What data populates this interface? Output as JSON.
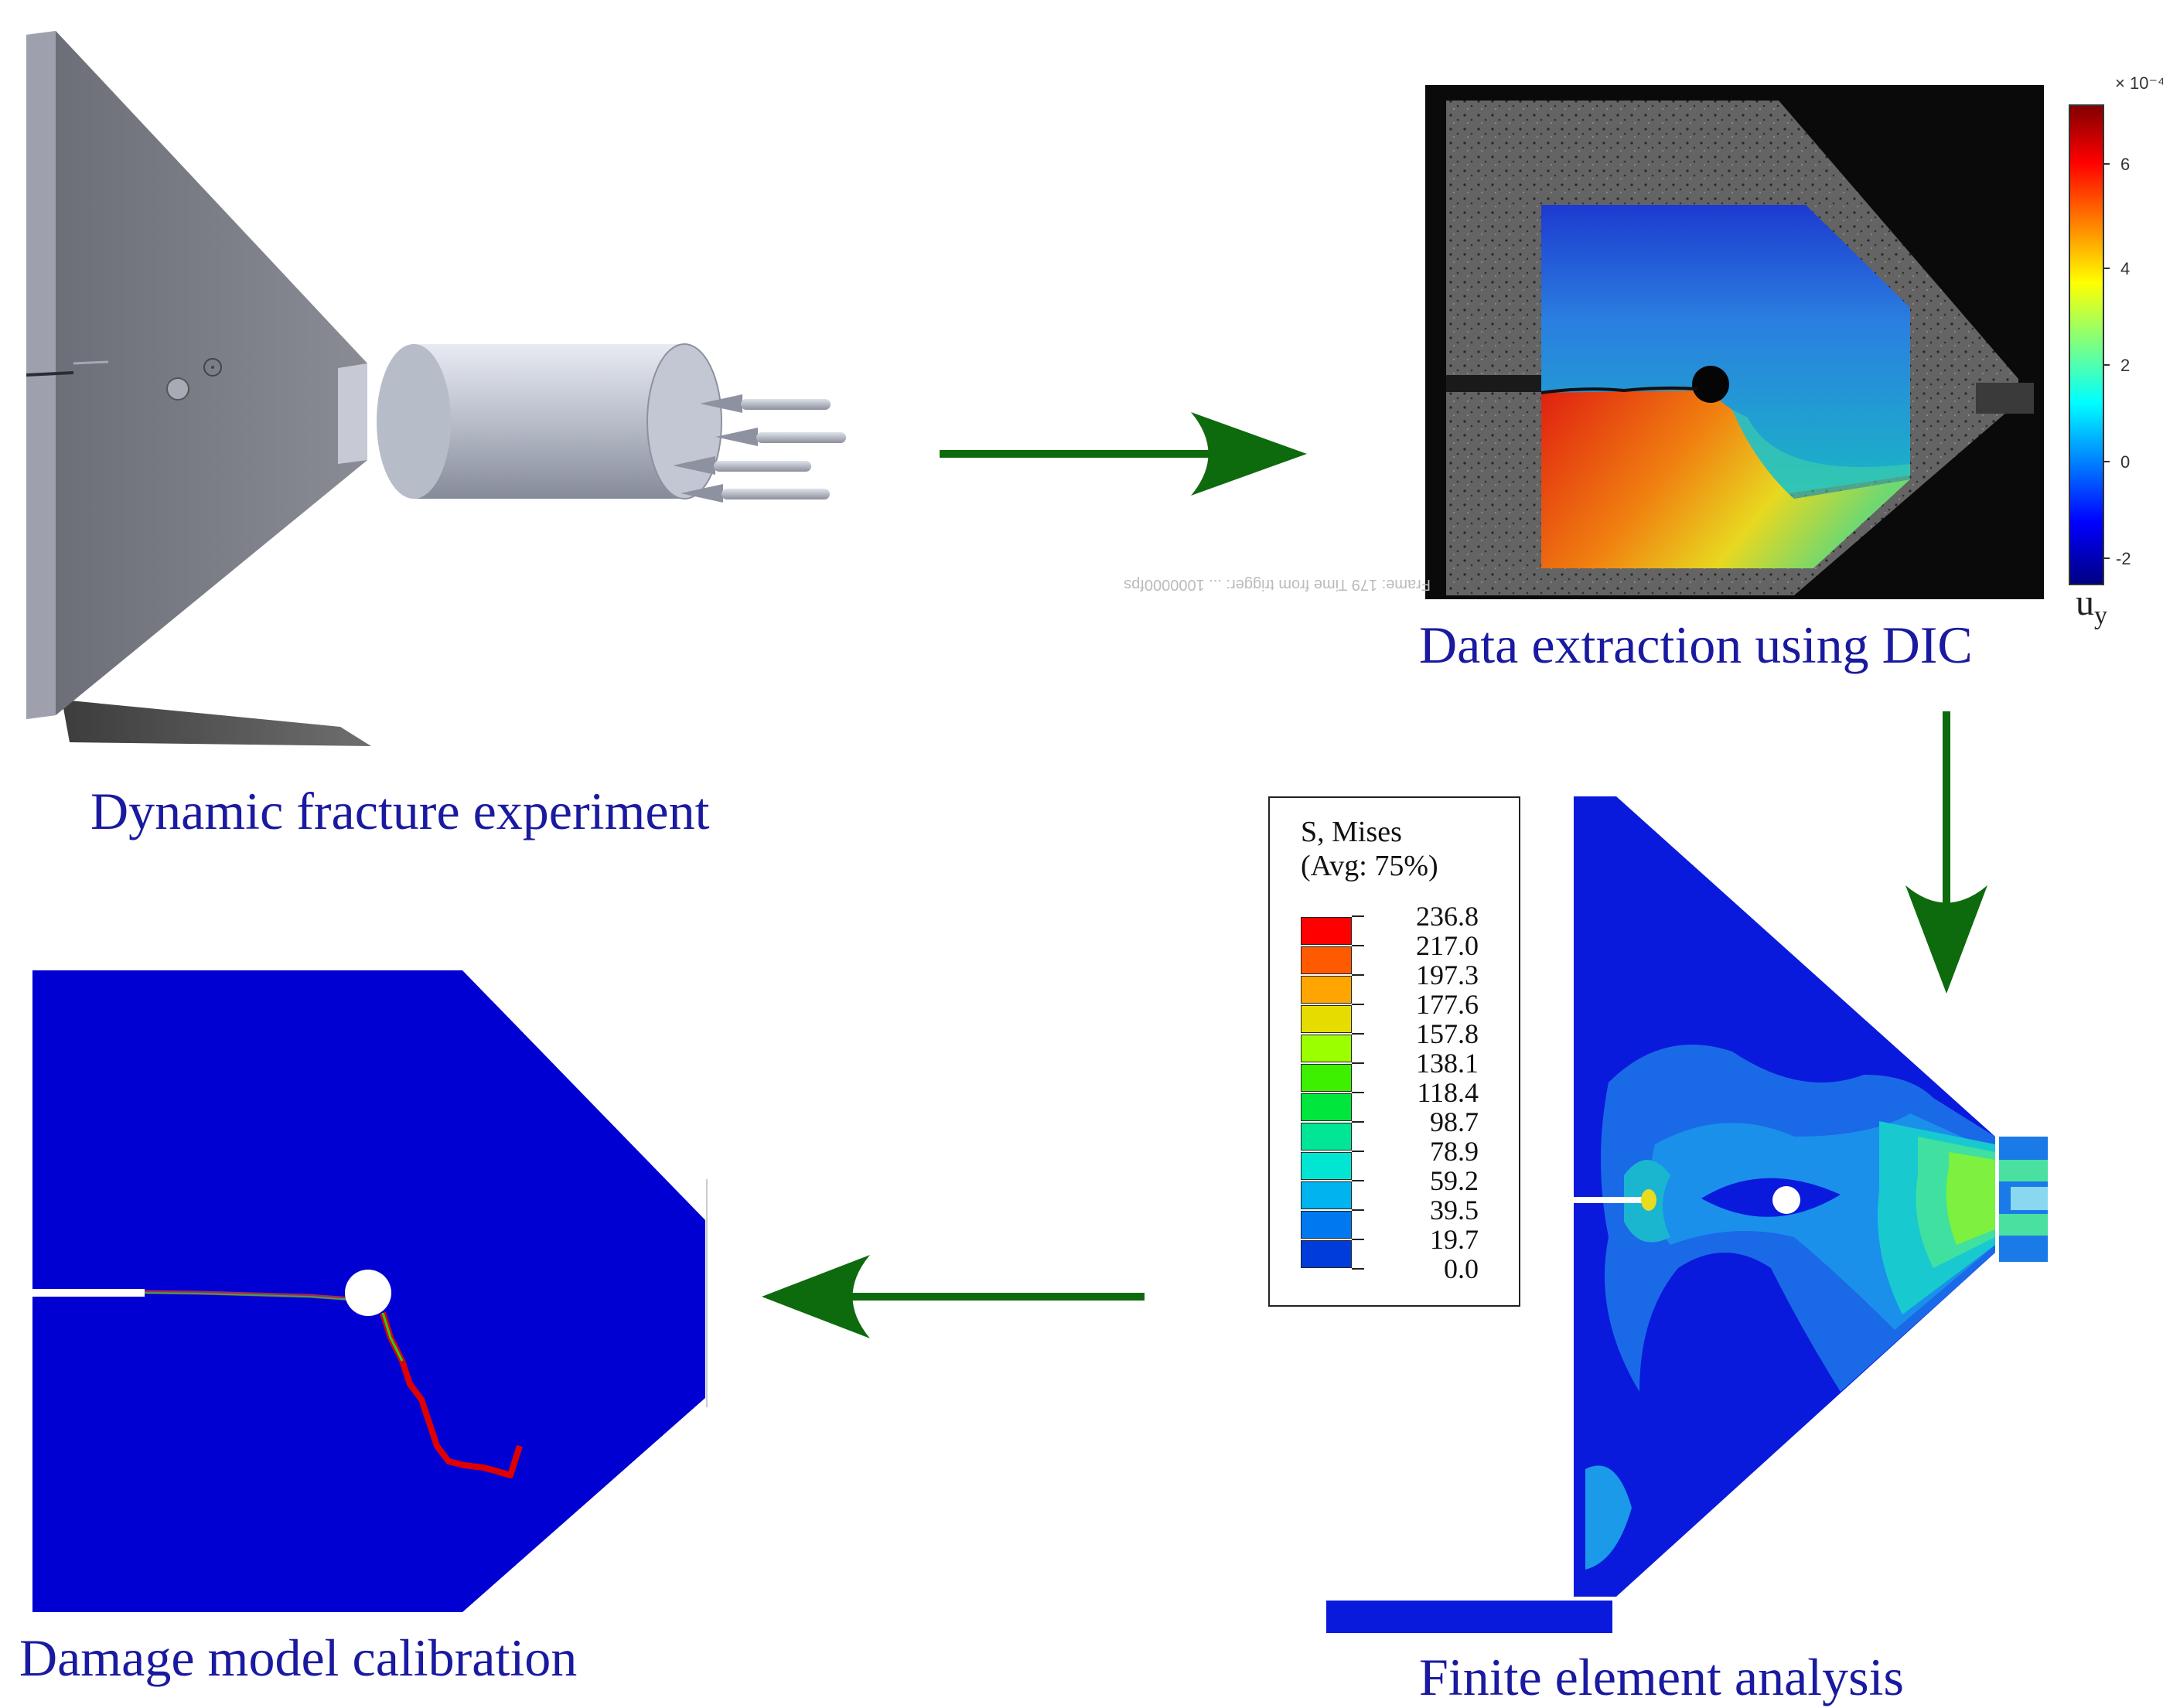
{
  "captions": {
    "experiment": "Dynamic fracture experiment",
    "dic": "Data extraction using DIC",
    "fea": "Finite element analysis",
    "calibration": "Damage model calibration"
  },
  "dic_colorbar": {
    "exponent": "× 10⁻⁴",
    "ticks": [
      "6",
      "4",
      "2",
      "0",
      "-2"
    ],
    "variable": "u",
    "variable_sub": "y",
    "overlay_text": "Frame: 179   Time from trigger: ...   1000000fps"
  },
  "fea_legend": {
    "title_line1": "S, Mises",
    "title_line2": "(Avg: 75%)",
    "levels": [
      "236.8",
      "217.0",
      "197.3",
      "177.6",
      "157.8",
      "138.1",
      "118.4",
      "98.7",
      "78.9",
      "59.2",
      "39.5",
      "19.7",
      "0.0"
    ],
    "colors": [
      "#ff0000",
      "#ff5a00",
      "#ffa500",
      "#e6dc00",
      "#9cff00",
      "#3cf000",
      "#00e63c",
      "#00e696",
      "#00e6d2",
      "#00b4f0",
      "#0078f0",
      "#003cdc",
      "#0000e6"
    ]
  },
  "colors": {
    "caption": "#1a1aa0",
    "arrow": "#0d6a0d",
    "fe_blue": "#0000d2"
  },
  "icons": [
    "cylinder-striker",
    "load-arrows",
    "flow-arrow-right",
    "flow-arrow-down",
    "flow-arrow-left"
  ]
}
